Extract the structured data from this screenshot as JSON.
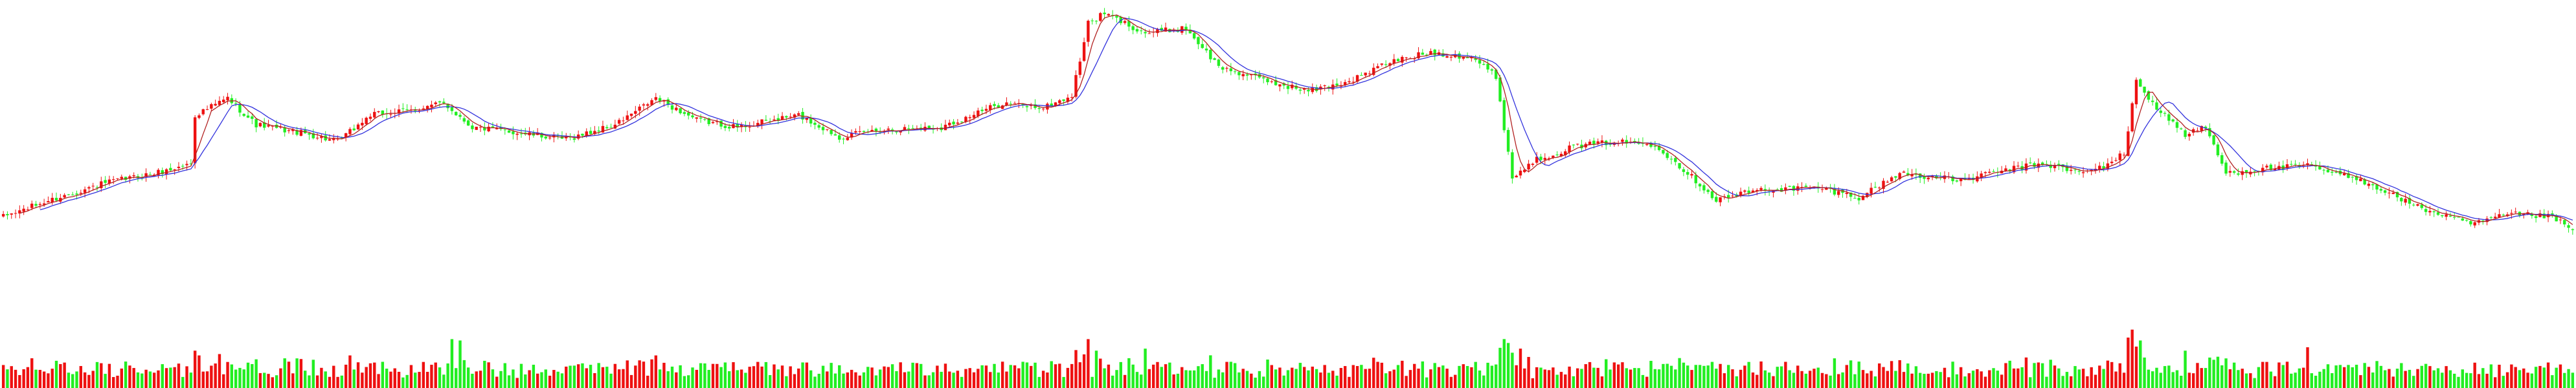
{
  "chart_data": {
    "type": "candlestick",
    "description_free": true,
    "colors": {
      "up": "#ee1111",
      "down": "#22ee22",
      "ma_fast": "#b22222",
      "ma_slow": "#3333dd",
      "background": "#ffffff"
    },
    "price_range": [
      18.0,
      28.0
    ],
    "volume_range": [
      0,
      100
    ],
    "grid": false,
    "legend": "none",
    "anchors": [
      {
        "i": 0,
        "p": 19.2
      },
      {
        "i": 10,
        "p": 19.8
      },
      {
        "i": 25,
        "p": 20.6
      },
      {
        "i": 40,
        "p": 21.1
      },
      {
        "i": 46,
        "p": 21.4
      },
      {
        "i": 47,
        "p": 23.4
      },
      {
        "i": 55,
        "p": 24.1
      },
      {
        "i": 62,
        "p": 23.0
      },
      {
        "i": 75,
        "p": 22.6
      },
      {
        "i": 82,
        "p": 22.3
      },
      {
        "i": 90,
        "p": 23.4
      },
      {
        "i": 100,
        "p": 23.6
      },
      {
        "i": 108,
        "p": 23.9
      },
      {
        "i": 115,
        "p": 22.9
      },
      {
        "i": 125,
        "p": 22.7
      },
      {
        "i": 138,
        "p": 22.4
      },
      {
        "i": 150,
        "p": 23.0
      },
      {
        "i": 160,
        "p": 24.1
      },
      {
        "i": 170,
        "p": 23.2
      },
      {
        "i": 180,
        "p": 22.9
      },
      {
        "i": 195,
        "p": 23.4
      },
      {
        "i": 205,
        "p": 22.5
      },
      {
        "i": 215,
        "p": 22.8
      },
      {
        "i": 230,
        "p": 22.9
      },
      {
        "i": 245,
        "p": 23.9
      },
      {
        "i": 255,
        "p": 23.7
      },
      {
        "i": 262,
        "p": 24.2
      },
      {
        "i": 266,
        "p": 27.2
      },
      {
        "i": 270,
        "p": 27.6
      },
      {
        "i": 280,
        "p": 26.8
      },
      {
        "i": 290,
        "p": 27.0
      },
      {
        "i": 298,
        "p": 25.4
      },
      {
        "i": 310,
        "p": 24.8
      },
      {
        "i": 320,
        "p": 24.4
      },
      {
        "i": 330,
        "p": 24.8
      },
      {
        "i": 340,
        "p": 25.6
      },
      {
        "i": 350,
        "p": 26.0
      },
      {
        "i": 360,
        "p": 25.8
      },
      {
        "i": 366,
        "p": 25.0
      },
      {
        "i": 370,
        "p": 20.8
      },
      {
        "i": 375,
        "p": 21.5
      },
      {
        "i": 385,
        "p": 22.1
      },
      {
        "i": 395,
        "p": 22.3
      },
      {
        "i": 405,
        "p": 22.2
      },
      {
        "i": 415,
        "p": 20.7
      },
      {
        "i": 420,
        "p": 19.9
      },
      {
        "i": 430,
        "p": 20.3
      },
      {
        "i": 445,
        "p": 20.4
      },
      {
        "i": 455,
        "p": 20.0
      },
      {
        "i": 465,
        "p": 21.0
      },
      {
        "i": 480,
        "p": 20.7
      },
      {
        "i": 490,
        "p": 21.1
      },
      {
        "i": 500,
        "p": 21.4
      },
      {
        "i": 510,
        "p": 21.0
      },
      {
        "i": 515,
        "p": 21.3
      },
      {
        "i": 520,
        "p": 21.8
      },
      {
        "i": 523,
        "p": 24.8
      },
      {
        "i": 528,
        "p": 23.7
      },
      {
        "i": 535,
        "p": 22.6
      },
      {
        "i": 540,
        "p": 22.9
      },
      {
        "i": 545,
        "p": 21.0
      },
      {
        "i": 555,
        "p": 21.2
      },
      {
        "i": 565,
        "p": 21.3
      },
      {
        "i": 580,
        "p": 20.6
      },
      {
        "i": 592,
        "p": 19.6
      },
      {
        "i": 605,
        "p": 18.9
      },
      {
        "i": 615,
        "p": 19.3
      },
      {
        "i": 625,
        "p": 19.2
      },
      {
        "i": 630,
        "p": 18.6
      }
    ],
    "volume_spikes": [
      {
        "i": 47,
        "v": 55
      },
      {
        "i": 48,
        "v": 48
      },
      {
        "i": 53,
        "v": 50
      },
      {
        "i": 85,
        "v": 48
      },
      {
        "i": 110,
        "v": 72
      },
      {
        "i": 112,
        "v": 70
      },
      {
        "i": 160,
        "v": 48
      },
      {
        "i": 266,
        "v": 72
      },
      {
        "i": 268,
        "v": 55
      },
      {
        "i": 280,
        "v": 58
      },
      {
        "i": 370,
        "v": 52
      },
      {
        "i": 372,
        "v": 58
      },
      {
        "i": 522,
        "v": 86
      },
      {
        "i": 524,
        "v": 70
      },
      {
        "i": 535,
        "v": 55
      },
      {
        "i": 565,
        "v": 60
      }
    ],
    "candle_count": 631,
    "ma_periods": [
      5,
      10
    ]
  }
}
